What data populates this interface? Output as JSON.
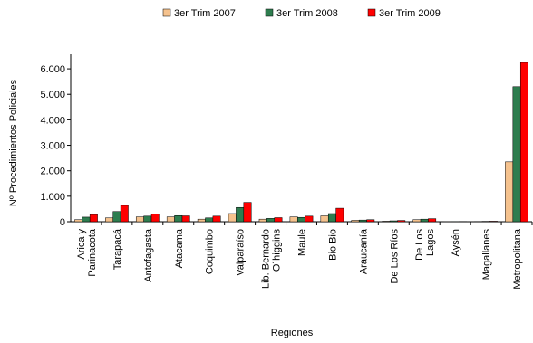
{
  "chart_data": {
    "type": "bar",
    "title": "",
    "xlabel": "Regiones",
    "ylabel": "Nº Procedimientos Policiales",
    "ylim": [
      0,
      6500
    ],
    "yticks": [
      "0",
      "1.000",
      "2.000",
      "3.000",
      "4.000",
      "5.000",
      "6.000"
    ],
    "ytick_values": [
      0,
      1000,
      2000,
      3000,
      4000,
      5000,
      6000
    ],
    "grid": false,
    "legend_position": "top",
    "categories": [
      [
        "Arica y",
        "Parinacota"
      ],
      [
        "Tarapacá"
      ],
      [
        "Antofagasta"
      ],
      [
        "Atacama"
      ],
      [
        "Coquimbo"
      ],
      [
        "Valparaíso"
      ],
      [
        "Lib. Bernardo",
        "O´higgins"
      ],
      [
        "Maule"
      ],
      [
        "Bio Bio"
      ],
      [
        "Araucanía"
      ],
      [
        "De Los Ríos"
      ],
      [
        "De Los",
        "Lagos"
      ],
      [
        "Aysén"
      ],
      [
        "Magallanes"
      ],
      [
        "Metropolitana"
      ]
    ],
    "series": [
      {
        "name": "3er Trim 2007",
        "color": "#F5C28E",
        "values": [
          80,
          150,
          190,
          190,
          100,
          320,
          100,
          190,
          230,
          55,
          20,
          80,
          5,
          10,
          2350
        ]
      },
      {
        "name": "3er Trim 2008",
        "color": "#2E7D4F",
        "values": [
          180,
          400,
          220,
          240,
          150,
          560,
          130,
          170,
          320,
          65,
          35,
          100,
          5,
          15,
          5300
        ]
      },
      {
        "name": "3er Trim 2009",
        "color": "#FF0000",
        "values": [
          280,
          640,
          310,
          230,
          220,
          760,
          160,
          220,
          530,
          80,
          50,
          120,
          10,
          20,
          6250
        ]
      }
    ]
  }
}
